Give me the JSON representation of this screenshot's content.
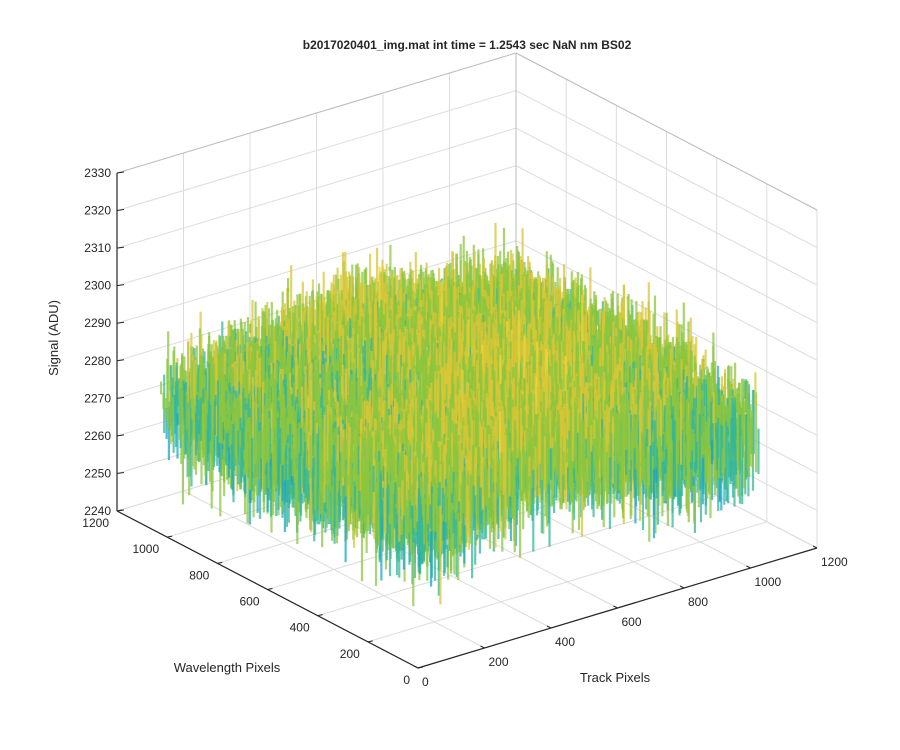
{
  "chart_data": {
    "type": "surface",
    "title": "b2017020401_img.mat int time = 1.2543 sec  NaN nm BS02",
    "xlabel": "Track Pixels",
    "ylabel": "Wavelength Pixels",
    "zlabel": "Signal (ADU)",
    "xlim": [
      0,
      1200
    ],
    "ylim": [
      0,
      1200
    ],
    "zlim": [
      2240,
      2330
    ],
    "xticks": [
      "0",
      "200",
      "400",
      "600",
      "800",
      "1000",
      "1200"
    ],
    "yticks": [
      "0",
      "200",
      "400",
      "600",
      "800",
      "1000",
      "1200"
    ],
    "zticks": [
      "2240",
      "2250",
      "2260",
      "2270",
      "2280",
      "2290",
      "2300",
      "2310",
      "2320",
      "2330"
    ],
    "surface": {
      "description_values": "noisy surface of detector signal",
      "mean_signal": 2282,
      "signal_range": [
        2245,
        2318
      ],
      "extent_track": [
        0,
        1024
      ],
      "extent_wavelength": [
        0,
        1024
      ],
      "colormap": [
        "#0072bd",
        "#1aa6c9",
        "#36b79a",
        "#8cc63f",
        "#d9c637",
        "#f2d33a"
      ]
    },
    "grid": true,
    "view": "3d-azimuth-minus-37.5-elevation-30"
  }
}
